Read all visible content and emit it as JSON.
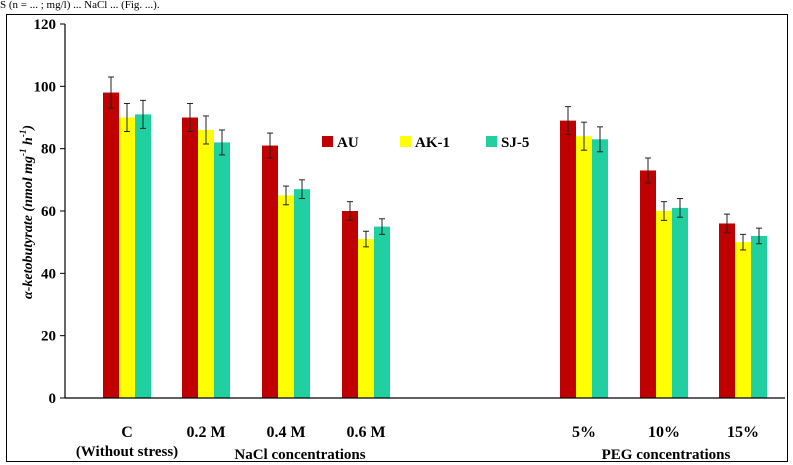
{
  "caption_fragment": "S (n = ... ; mg/l) ... NaCl ... (Fig. ...).",
  "chart_data": {
    "type": "bar",
    "ylabel_main": "α-ketobutyrate (nmol mg",
    "ylabel_sup1": "-1",
    "ylabel_mid": " h",
    "ylabel_sup2": "-1",
    "ylabel_end": ")",
    "ylim": [
      0,
      120
    ],
    "yticks": [
      0,
      20,
      40,
      60,
      80,
      100,
      120
    ],
    "categories": [
      "C",
      "0.2 M",
      "0.4 M",
      "0.6 M",
      "5%",
      "10%",
      "15%"
    ],
    "category_sublabel": "(Without stress)",
    "group_labels": [
      "NaCl concentrations",
      "PEG concentrations"
    ],
    "legend_position": "top-center",
    "series": [
      {
        "name": "AU",
        "color": "#c00000",
        "values": [
          98,
          90,
          81,
          60,
          89,
          73,
          56
        ],
        "errors": [
          5,
          4.5,
          4,
          3,
          4.5,
          4,
          3
        ]
      },
      {
        "name": "AK-1",
        "color": "#ffff00",
        "values": [
          90,
          86,
          65,
          51,
          84,
          60,
          50
        ],
        "errors": [
          4.5,
          4.5,
          3,
          2.5,
          4.5,
          3,
          2.5
        ]
      },
      {
        "name": "SJ-5",
        "color": "#20d0a0",
        "values": [
          91,
          82,
          67,
          55,
          83,
          61,
          52
        ],
        "errors": [
          4.5,
          4,
          3,
          2.5,
          4,
          3,
          2.5
        ]
      }
    ]
  }
}
